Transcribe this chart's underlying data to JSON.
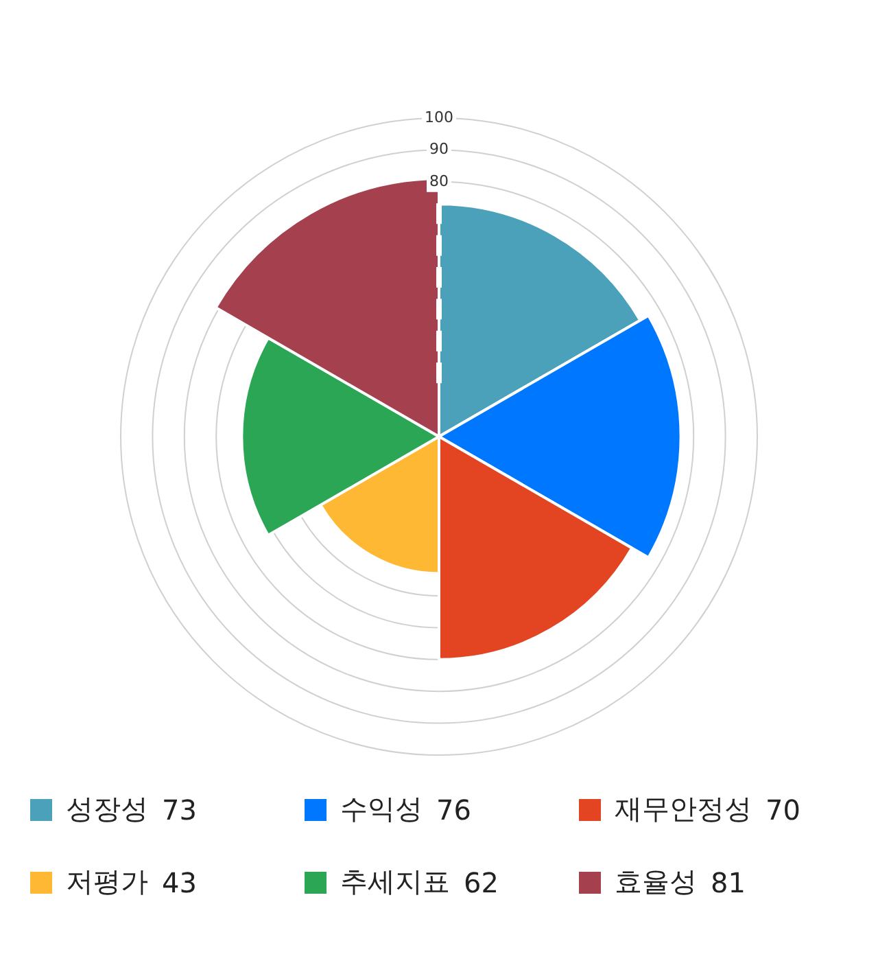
{
  "chart_data": {
    "type": "other",
    "categories": [
      "성장성",
      "수익성",
      "재무안정성",
      "저평가",
      "추세지표",
      "효율성"
    ],
    "values": [
      73,
      76,
      70,
      43,
      62,
      81
    ],
    "colors": [
      "#4aa1b9",
      "#0077ff",
      "#e34522",
      "#ffb833",
      "#2aa655",
      "#a5404f"
    ],
    "annotations": [
      "100",
      "90",
      "80"
    ],
    "data_labels": true
  }
}
